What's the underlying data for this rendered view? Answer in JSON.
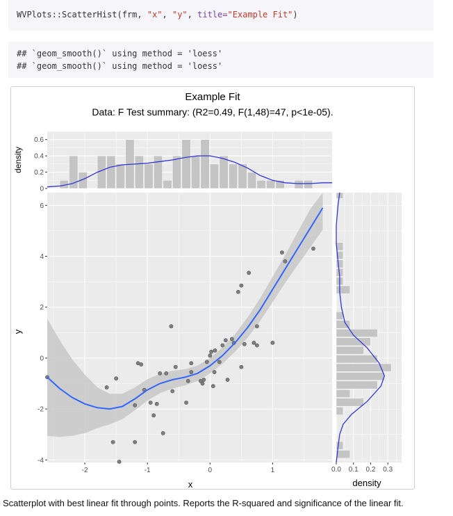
{
  "code": {
    "call_prefix": "WVPlots::ScatterHist(frm, ",
    "arg_x": "\"x\"",
    "sep": ", ",
    "arg_y": "\"y\"",
    "sep2": ", ",
    "title_kw": "title=",
    "title_val": "\"Example Fit\"",
    "call_suffix": ")"
  },
  "output_lines": [
    "## `geom_smooth()` using method = 'loess'",
    "## `geom_smooth()` using method = 'loess'"
  ],
  "caption": "Scatterplot with best linear fit through points. Reports the R-squared and significance of the linear fit.",
  "chart_data": [
    {
      "type": "scatter",
      "title": "Example Fit",
      "subtitle": "Data: F Test summary: (R2=0.49, F(1,48)=47, p<1e-05).",
      "xlabel": "x",
      "ylabel": "y",
      "xlim": [
        -2.6,
        1.95
      ],
      "ylim": [
        -4.1,
        6.5
      ],
      "x_ticks": [
        -2,
        -1,
        0,
        1
      ],
      "y_ticks": [
        -4,
        -2,
        0,
        2,
        4,
        6
      ],
      "grid": true,
      "colors": {
        "panel": "#ebebeb",
        "points": "#7f7f7f",
        "smooth": "#3366ff",
        "ribbon": "#c8c8c8"
      },
      "points": [
        [
          -2.6,
          -0.75
        ],
        [
          -1.65,
          -1.15
        ],
        [
          -1.5,
          -0.8
        ],
        [
          -1.55,
          -3.3
        ],
        [
          -1.2,
          -3.3
        ],
        [
          -1.15,
          -0.2
        ],
        [
          -1.1,
          -0.25
        ],
        [
          -1.05,
          -1.25
        ],
        [
          -1.2,
          -1.85
        ],
        [
          -0.95,
          -1.75
        ],
        [
          -0.85,
          -1.8
        ],
        [
          -0.9,
          -2.25
        ],
        [
          -0.75,
          -2.95
        ],
        [
          -0.8,
          -0.6
        ],
        [
          -0.7,
          -0.6
        ],
        [
          -0.6,
          -1.3
        ],
        [
          -0.62,
          1.25
        ],
        [
          -0.55,
          -0.35
        ],
        [
          -0.38,
          -1.75
        ],
        [
          -0.35,
          -0.9
        ],
        [
          -0.3,
          -0.55
        ],
        [
          -0.3,
          -0.2
        ],
        [
          -0.15,
          -0.9
        ],
        [
          -0.12,
          -1.0
        ],
        [
          -0.1,
          -0.85
        ],
        [
          -0.05,
          -0.15
        ],
        [
          0.0,
          0.1
        ],
        [
          0.02,
          0.25
        ],
        [
          0.05,
          -1.1
        ],
        [
          0.07,
          -0.55
        ],
        [
          0.08,
          0.3
        ],
        [
          0.15,
          -0.15
        ],
        [
          0.2,
          0.5
        ],
        [
          0.25,
          0.7
        ],
        [
          0.28,
          -0.85
        ],
        [
          0.35,
          0.75
        ],
        [
          0.38,
          0.6
        ],
        [
          0.45,
          2.6
        ],
        [
          0.5,
          2.85
        ],
        [
          0.5,
          -0.35
        ],
        [
          0.55,
          0.55
        ],
        [
          0.62,
          3.35
        ],
        [
          0.75,
          1.25
        ],
        [
          0.75,
          0.5
        ],
        [
          0.7,
          0.6
        ],
        [
          1.0,
          0.6
        ],
        [
          1.15,
          4.15
        ],
        [
          1.2,
          3.8
        ],
        [
          1.65,
          4.3
        ],
        [
          -1.45,
          -4.4
        ]
      ],
      "smooth": [
        [
          -2.6,
          -0.75
        ],
        [
          -2.4,
          -1.2
        ],
        [
          -2.2,
          -1.55
        ],
        [
          -2.0,
          -1.8
        ],
        [
          -1.8,
          -1.95
        ],
        [
          -1.6,
          -2.0
        ],
        [
          -1.4,
          -1.9
        ],
        [
          -1.2,
          -1.6
        ],
        [
          -1.0,
          -1.25
        ],
        [
          -0.8,
          -1.0
        ],
        [
          -0.6,
          -0.85
        ],
        [
          -0.4,
          -0.75
        ],
        [
          -0.2,
          -0.6
        ],
        [
          0.0,
          -0.3
        ],
        [
          0.2,
          0.1
        ],
        [
          0.4,
          0.6
        ],
        [
          0.6,
          1.2
        ],
        [
          0.8,
          1.9
        ],
        [
          1.0,
          2.7
        ],
        [
          1.2,
          3.5
        ],
        [
          1.4,
          4.3
        ],
        [
          1.6,
          5.1
        ],
        [
          1.8,
          5.9
        ]
      ],
      "ribbon_halfwidth": [
        2.3,
        1.9,
        1.5,
        1.15,
        0.8,
        0.6,
        0.5,
        0.45,
        0.42,
        0.38,
        0.35,
        0.32,
        0.3,
        0.3,
        0.32,
        0.35,
        0.4,
        0.45,
        0.5,
        0.55,
        0.65,
        0.75,
        0.85
      ]
    },
    {
      "type": "bar",
      "xlim": [
        -2.6,
        1.95
      ],
      "ylim": [
        0,
        0.7
      ],
      "ylabel": "density",
      "y_ticks": [
        0,
        0.2,
        0.4,
        0.6
      ],
      "bin_start": -2.4,
      "bin_width": 0.15,
      "bin_heights": [
        0.1,
        0.4,
        0.2,
        0.0,
        0.4,
        0.4,
        0.3,
        0.6,
        0.4,
        0.3,
        0.4,
        0.1,
        0.4,
        0.6,
        0.4,
        0.6,
        0.3,
        0.4,
        0.3,
        0.3,
        0.2,
        0.1,
        0.1,
        0.1,
        0.0,
        0.1,
        0.1
      ],
      "density_curve": [
        [
          -2.6,
          0.02
        ],
        [
          -2.4,
          0.03
        ],
        [
          -2.2,
          0.06
        ],
        [
          -2.0,
          0.12
        ],
        [
          -1.8,
          0.2
        ],
        [
          -1.6,
          0.26
        ],
        [
          -1.4,
          0.29
        ],
        [
          -1.2,
          0.3
        ],
        [
          -1.0,
          0.31
        ],
        [
          -0.8,
          0.33
        ],
        [
          -0.6,
          0.35
        ],
        [
          -0.4,
          0.38
        ],
        [
          -0.2,
          0.4
        ],
        [
          0.0,
          0.4
        ],
        [
          0.2,
          0.37
        ],
        [
          0.4,
          0.32
        ],
        [
          0.6,
          0.25
        ],
        [
          0.8,
          0.16
        ],
        [
          1.0,
          0.1
        ],
        [
          1.2,
          0.07
        ],
        [
          1.4,
          0.06
        ],
        [
          1.6,
          0.06
        ],
        [
          1.8,
          0.07
        ],
        [
          1.95,
          0.07
        ]
      ]
    },
    {
      "type": "bar",
      "orientation": "horizontal",
      "xlabel": "density",
      "xlim": [
        0,
        0.38
      ],
      "x_ticks": [
        0.0,
        0.1,
        0.2,
        0.3
      ],
      "x_tick_labels": [
        "0.0",
        "0.1",
        "0.2",
        "0.3"
      ],
      "ylim": [
        -4.1,
        6.5
      ],
      "bin_start": -4.3,
      "bin_width": 0.34,
      "bin_heights": [
        0.0,
        0.08,
        0.04,
        0.0,
        0.0,
        0.0,
        0.04,
        0.16,
        0.08,
        0.24,
        0.28,
        0.32,
        0.24,
        0.16,
        0.2,
        0.24,
        0.08,
        0.04,
        0.0,
        0.0,
        0.08,
        0.04,
        0.04,
        0.04,
        0.04,
        0.04,
        0.0,
        0.0,
        0.0,
        0.0,
        0.0,
        0.04
      ],
      "density_curve": [
        [
          0.0,
          -4.1
        ],
        [
          0.01,
          -3.5
        ],
        [
          0.02,
          -3.0
        ],
        [
          0.04,
          -2.6
        ],
        [
          0.09,
          -2.2
        ],
        [
          0.18,
          -1.7
        ],
        [
          0.26,
          -1.1
        ],
        [
          0.28,
          -0.7
        ],
        [
          0.25,
          -0.2
        ],
        [
          0.18,
          0.4
        ],
        [
          0.1,
          0.9
        ],
        [
          0.05,
          1.4
        ],
        [
          0.03,
          2.0
        ],
        [
          0.02,
          2.6
        ],
        [
          0.02,
          3.2
        ],
        [
          0.01,
          3.8
        ],
        [
          0.0,
          4.5
        ],
        [
          0.0,
          5.2
        ],
        [
          0.01,
          6.0
        ],
        [
          0.02,
          6.5
        ]
      ]
    }
  ]
}
